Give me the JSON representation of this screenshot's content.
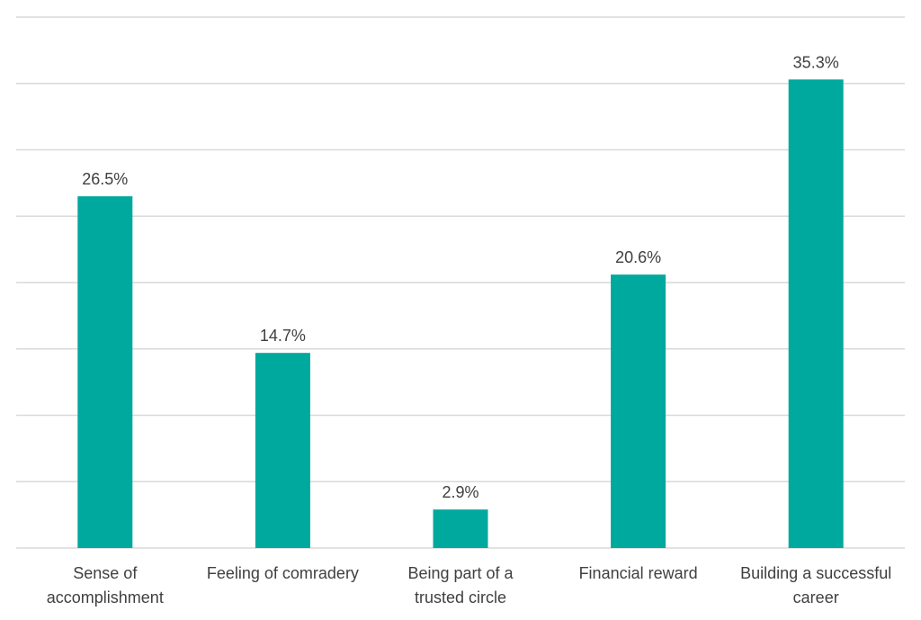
{
  "chart_data": {
    "type": "bar",
    "title": "",
    "xlabel": "",
    "ylabel": "",
    "categories": [
      "Sense of accomplishment",
      "Feeling of comradery",
      "Being part of a trusted circle",
      "Financial reward",
      "Building a successful career"
    ],
    "category_label_lines": [
      [
        "Sense of",
        "accomplishment"
      ],
      [
        "Feeling of comradery"
      ],
      [
        "Being part of a",
        "trusted circle"
      ],
      [
        "Financial reward"
      ],
      [
        "Building a successful",
        "career"
      ]
    ],
    "values": [
      26.5,
      14.7,
      2.9,
      20.6,
      35.3
    ],
    "value_labels": [
      "26.5%",
      "14.7%",
      "2.9%",
      "20.6%",
      "35.3%"
    ],
    "ylim": [
      0,
      40
    ],
    "y_gridlines": true,
    "y_tick_labels_shown": false,
    "legend": "none",
    "bar_color": "#00a99d",
    "grid_color": "#d9d9d9",
    "text_color": "#404040"
  }
}
